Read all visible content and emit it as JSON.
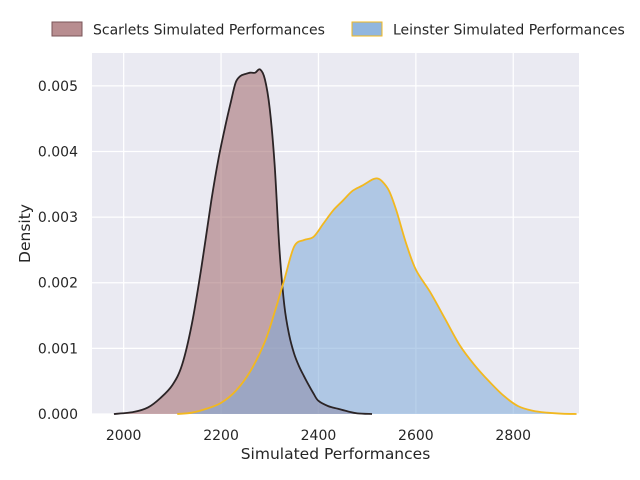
{
  "chart_data": {
    "type": "area",
    "title": "",
    "xlabel": "Simulated Performances",
    "ylabel": "Density",
    "xlim": [
      1935,
      2935
    ],
    "ylim": [
      0,
      0.0055
    ],
    "grid": true,
    "legend_position": "top",
    "x_ticks": [
      2000,
      2200,
      2400,
      2600,
      2800
    ],
    "y_ticks": [
      0.0,
      0.001,
      0.002,
      0.003,
      0.004,
      0.005
    ],
    "x_tick_labels": [
      "2000",
      "2200",
      "2400",
      "2600",
      "2800"
    ],
    "y_tick_labels": [
      "0.000",
      "0.001",
      "0.002",
      "0.003",
      "0.004",
      "0.005"
    ],
    "colors": {
      "background": "#eaeaf2",
      "grid": "#ffffff",
      "scarlets_fill": "#a0676b",
      "scarlets_line": "#2b2426",
      "leinster_fill": "#7ea9d8",
      "leinster_line": "#f2b81f"
    },
    "series": [
      {
        "name": "Scarlets Simulated Performances",
        "x": [
          1980,
          2020,
          2050,
          2075,
          2100,
          2120,
          2140,
          2160,
          2180,
          2195,
          2210,
          2220,
          2230,
          2240,
          2250,
          2260,
          2270,
          2280,
          2290,
          2300,
          2310,
          2320,
          2330,
          2340,
          2350,
          2360,
          2370,
          2380,
          2390,
          2400,
          2420,
          2440,
          2460,
          2480,
          2510
        ],
        "values": [
          0.0,
          3e-05,
          0.0001,
          0.00024,
          0.00044,
          0.00075,
          0.00137,
          0.00225,
          0.00325,
          0.0039,
          0.00443,
          0.00475,
          0.00505,
          0.00515,
          0.00518,
          0.0052,
          0.0052,
          0.00525,
          0.0051,
          0.00465,
          0.0038,
          0.0025,
          0.00165,
          0.0012,
          0.00092,
          0.00073,
          0.00058,
          0.00044,
          0.00031,
          0.0002,
          0.00012,
          8e-05,
          4e-05,
          1e-05,
          0.0
        ]
      },
      {
        "name": "Leinster Simulated Performances",
        "x": [
          2110,
          2140,
          2170,
          2200,
          2230,
          2260,
          2290,
          2310,
          2330,
          2350,
          2370,
          2390,
          2410,
          2430,
          2450,
          2470,
          2490,
          2510,
          2520,
          2530,
          2545,
          2560,
          2580,
          2600,
          2630,
          2660,
          2690,
          2720,
          2750,
          2780,
          2810,
          2840,
          2870,
          2900,
          2930
        ],
        "values": [
          0.0,
          2e-05,
          8e-05,
          0.00017,
          0.00035,
          0.00065,
          0.0011,
          0.00155,
          0.00205,
          0.00255,
          0.00265,
          0.0027,
          0.0029,
          0.0031,
          0.00325,
          0.0034,
          0.00348,
          0.00357,
          0.00359,
          0.00355,
          0.0034,
          0.0031,
          0.0026,
          0.0022,
          0.00185,
          0.00145,
          0.00105,
          0.00075,
          0.0005,
          0.00028,
          0.00012,
          5e-05,
          2e-05,
          5e-06,
          0.0
        ]
      }
    ]
  }
}
